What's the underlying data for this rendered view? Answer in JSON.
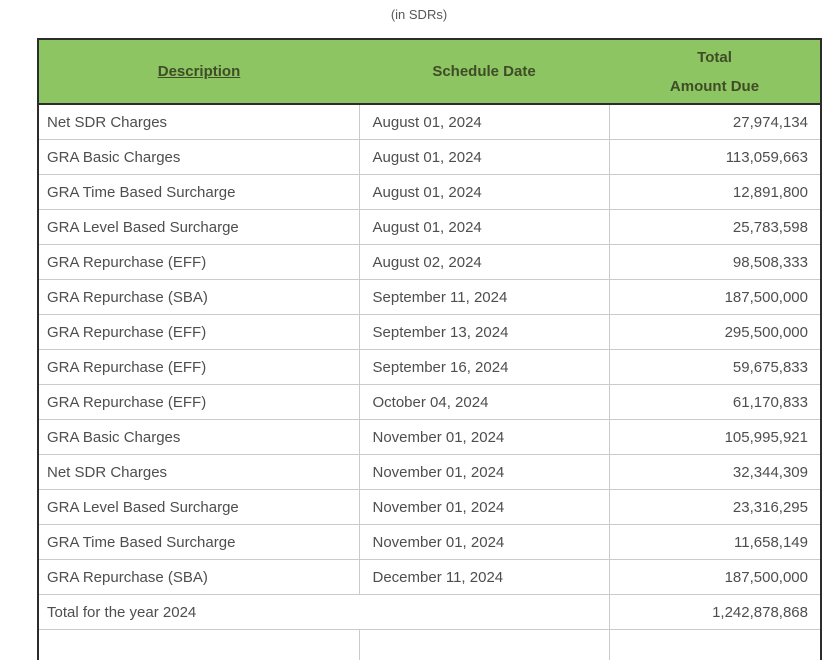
{
  "title": "(in SDRs)",
  "colors": {
    "header_bg": "#8cc561",
    "header_text": "#3f4c27",
    "outer_border": "#2c2c2c",
    "row_border": "#cbcbcb",
    "body_text": "#4e4e4e",
    "title_text": "#585858"
  },
  "table": {
    "header": {
      "description": "Description",
      "schedule_date": "Schedule Date",
      "total_line1": "Total",
      "total_line2": "Amount Due"
    },
    "rows": [
      {
        "description": "Net SDR Charges",
        "schedule_date": "August 01, 2024",
        "total_amount_due": "27,974,134"
      },
      {
        "description": "GRA Basic Charges",
        "schedule_date": "August 01, 2024",
        "total_amount_due": "113,059,663"
      },
      {
        "description": "GRA Time Based Surcharge",
        "schedule_date": "August 01, 2024",
        "total_amount_due": "12,891,800"
      },
      {
        "description": "GRA Level Based Surcharge",
        "schedule_date": "August 01, 2024",
        "total_amount_due": "25,783,598"
      },
      {
        "description": "GRA Repurchase (EFF)",
        "schedule_date": "August 02, 2024",
        "total_amount_due": "98,508,333"
      },
      {
        "description": "GRA Repurchase (SBA)",
        "schedule_date": "September 11, 2024",
        "total_amount_due": "187,500,000"
      },
      {
        "description": "GRA Repurchase (EFF)",
        "schedule_date": "September 13, 2024",
        "total_amount_due": "295,500,000"
      },
      {
        "description": "GRA Repurchase (EFF)",
        "schedule_date": "September 16, 2024",
        "total_amount_due": "59,675,833"
      },
      {
        "description": "GRA Repurchase (EFF)",
        "schedule_date": "October 04, 2024",
        "total_amount_due": "61,170,833"
      },
      {
        "description": "GRA Basic Charges",
        "schedule_date": "November 01, 2024",
        "total_amount_due": "105,995,921"
      },
      {
        "description": "Net SDR Charges",
        "schedule_date": "November 01, 2024",
        "total_amount_due": "32,344,309"
      },
      {
        "description": "GRA Level Based Surcharge",
        "schedule_date": "November 01, 2024",
        "total_amount_due": "23,316,295"
      },
      {
        "description": "GRA Time Based Surcharge",
        "schedule_date": "November 01, 2024",
        "total_amount_due": "11,658,149"
      },
      {
        "description": "GRA Repurchase (SBA)",
        "schedule_date": "December 11, 2024",
        "total_amount_due": "187,500,000"
      }
    ],
    "total_row": {
      "label": "Total for the year 2024",
      "amount": "1,242,878,868"
    }
  }
}
